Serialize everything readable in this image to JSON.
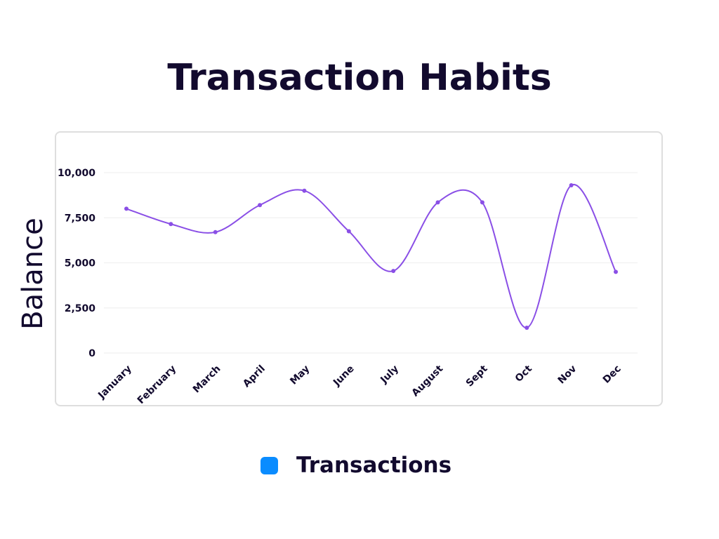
{
  "chart_data": {
    "type": "line",
    "title": "Transaction Habits",
    "ylabel": "Balance",
    "xlabel": "",
    "categories": [
      "January",
      "February",
      "March",
      "April",
      "May",
      "June",
      "July",
      "August",
      "Sept",
      "Oct",
      "Nov",
      "Dec"
    ],
    "series": [
      {
        "name": "Transactions",
        "values": [
          8000,
          7150,
          6700,
          8200,
          9000,
          6750,
          4550,
          8350,
          8350,
          1400,
          9300,
          4500
        ],
        "color": "#8a4fe6"
      }
    ],
    "ylim": [
      0,
      10000
    ],
    "yticks": [
      0,
      2500,
      5000,
      7500,
      10000
    ],
    "ytick_labels": [
      "0",
      "2,500",
      "5,000",
      "7,500",
      "10,000"
    ],
    "grid": true,
    "smooth": true,
    "legend_position": "bottom-center",
    "legend_color": "#0a8cff"
  }
}
